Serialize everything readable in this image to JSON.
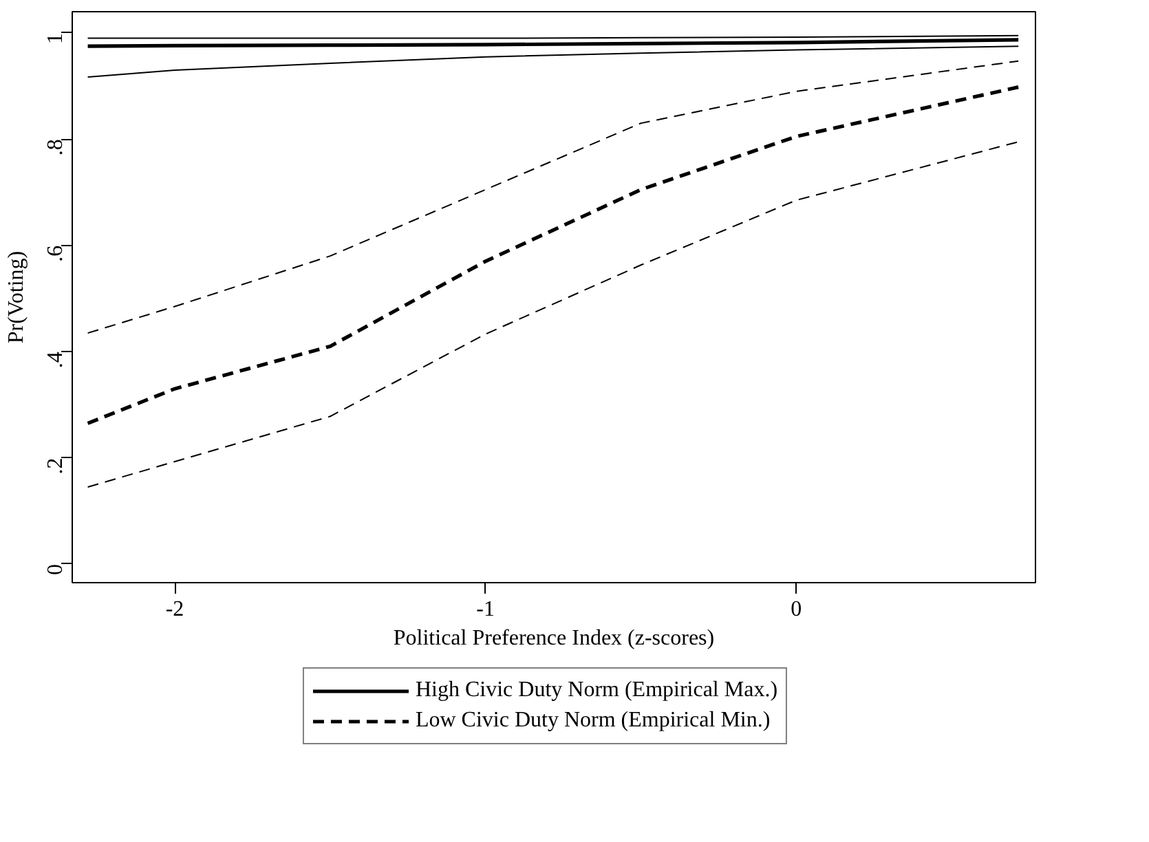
{
  "chart_data": {
    "type": "line",
    "xlabel": "Political Preference Index (z-scores)",
    "ylabel": "Pr(Voting)",
    "xlim": [
      -2.33,
      0.77
    ],
    "ylim": [
      -0.035,
      1.04
    ],
    "xticks": [
      -2,
      -1,
      0
    ],
    "yticks": [
      0,
      {
        "value": 0.2,
        "label": ".2"
      },
      {
        "value": 0.4,
        "label": ".4"
      },
      {
        "value": 0.6,
        "label": ".6"
      },
      {
        "value": 0.8,
        "label": ".8"
      },
      1
    ],
    "x": [
      -2.28,
      -2,
      -1.5,
      -1,
      -0.5,
      0,
      0.715
    ],
    "grid": false,
    "legend": "bottom",
    "series": [
      {
        "name": "High Civic Duty Norm (Empirical Max.)",
        "color": "#000000",
        "line_style": "solid",
        "values": [
          0.975,
          0.976,
          0.977,
          0.978,
          0.98,
          0.982,
          0.987
        ]
      },
      {
        "color": "#000000",
        "line_style": "solid",
        "values": [
          0.99,
          0.99,
          0.99,
          0.99,
          0.991,
          0.992,
          0.995
        ]
      },
      {
        "color": "#000000",
        "line_style": "solid",
        "values": [
          0.917,
          0.93,
          0.943,
          0.955,
          0.962,
          0.968,
          0.975
        ]
      },
      {
        "name": "Low Civic Duty Norm (Empirical Min.)",
        "color": "#000000",
        "line_style": "dashed",
        "values": [
          0.265,
          0.33,
          0.41,
          0.57,
          0.705,
          0.805,
          0.898
        ]
      },
      {
        "color": "#000000",
        "line_style": "dashed",
        "values": [
          0.435,
          0.485,
          0.58,
          0.705,
          0.83,
          0.89,
          0.947
        ]
      },
      {
        "color": "#000000",
        "line_style": "dashed",
        "values": [
          0.145,
          0.193,
          0.278,
          0.433,
          0.563,
          0.685,
          0.795
        ]
      }
    ]
  }
}
